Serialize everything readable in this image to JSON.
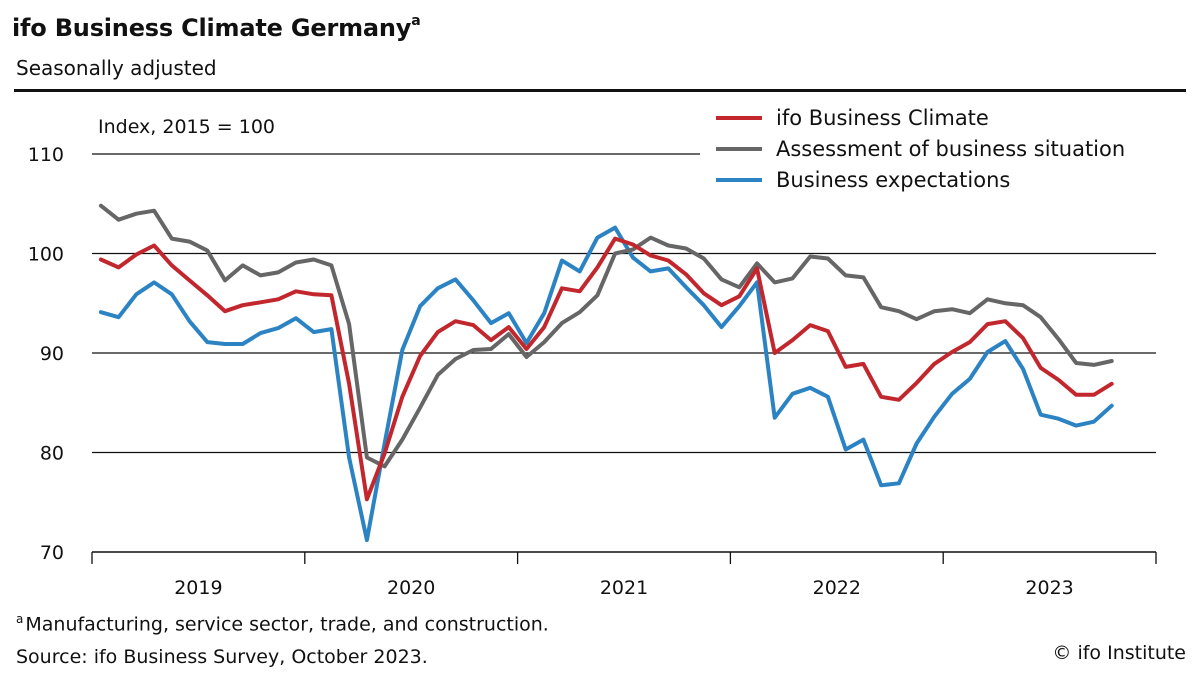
{
  "header": {
    "title": "ifo Business Climate Germany",
    "title_marker": "a",
    "subtitle": "Seasonally adjusted"
  },
  "footer": {
    "note_marker": "a",
    "note": "Manufacturing, service sector, trade, and construction.",
    "source": "Source: ifo Business Survey, October 2023.",
    "credit": "© ifo Institute"
  },
  "chart_data": {
    "type": "line",
    "unit_label": "Index, 2015 = 100",
    "ylim": [
      70,
      110
    ],
    "yticks": [
      70,
      80,
      90,
      100,
      110
    ],
    "x_start": "2019-01",
    "months": 58,
    "years": [
      "2019",
      "2020",
      "2021",
      "2022",
      "2023"
    ],
    "grid": true,
    "legend_position": "top-right",
    "series": [
      {
        "name": "ifo Business Climate",
        "color": "#c1272d",
        "values": [
          99.4,
          98.6,
          99.9,
          100.8,
          98.8,
          97.3,
          95.8,
          94.2,
          94.8,
          95.1,
          95.4,
          96.2,
          95.9,
          95.8,
          86.9,
          75.3,
          79.9,
          85.6,
          89.7,
          92.1,
          93.2,
          92.8,
          91.3,
          92.6,
          90.4,
          92.6,
          96.5,
          96.2,
          98.6,
          101.5,
          100.9,
          99.8,
          99.3,
          97.9,
          96.0,
          94.8,
          95.7,
          98.5,
          90.0,
          91.3,
          92.8,
          92.2,
          88.6,
          88.9,
          85.6,
          85.3,
          87.0,
          88.9,
          90.1,
          91.1,
          92.9,
          93.2,
          91.5,
          88.5,
          87.3,
          85.8,
          85.8,
          86.9
        ]
      },
      {
        "name": "Assessment of business situation",
        "color": "#666666",
        "values": [
          104.8,
          103.4,
          104.0,
          104.3,
          101.5,
          101.2,
          100.3,
          97.3,
          98.8,
          97.8,
          98.1,
          99.1,
          99.4,
          98.8,
          92.9,
          79.5,
          78.6,
          81.3,
          84.5,
          87.8,
          89.4,
          90.3,
          90.4,
          91.9,
          89.6,
          91.1,
          93.0,
          94.1,
          95.8,
          100.0,
          100.4,
          101.6,
          100.8,
          100.5,
          99.5,
          97.4,
          96.6,
          99.0,
          97.1,
          97.5,
          99.7,
          99.5,
          97.8,
          97.6,
          94.6,
          94.2,
          93.4,
          94.2,
          94.4,
          94.0,
          95.4,
          95.0,
          94.8,
          93.6,
          91.4,
          89.0,
          88.8,
          89.2
        ]
      },
      {
        "name": "Business expectations",
        "color": "#2b83c4",
        "values": [
          94.1,
          93.6,
          95.9,
          97.1,
          95.9,
          93.2,
          91.1,
          90.9,
          90.9,
          92.0,
          92.5,
          93.5,
          92.1,
          92.4,
          79.5,
          71.2,
          80.9,
          90.3,
          94.7,
          96.5,
          97.4,
          95.3,
          93.0,
          94.0,
          91.0,
          94.0,
          99.3,
          98.2,
          101.6,
          102.6,
          99.6,
          98.2,
          98.5,
          96.6,
          94.8,
          92.6,
          94.7,
          97.1,
          83.5,
          85.9,
          86.5,
          85.6,
          80.3,
          81.3,
          76.7,
          76.9,
          80.9,
          83.6,
          85.9,
          87.4,
          90.1,
          91.2,
          88.4,
          83.8,
          83.4,
          82.7,
          83.1,
          84.7
        ]
      }
    ]
  }
}
